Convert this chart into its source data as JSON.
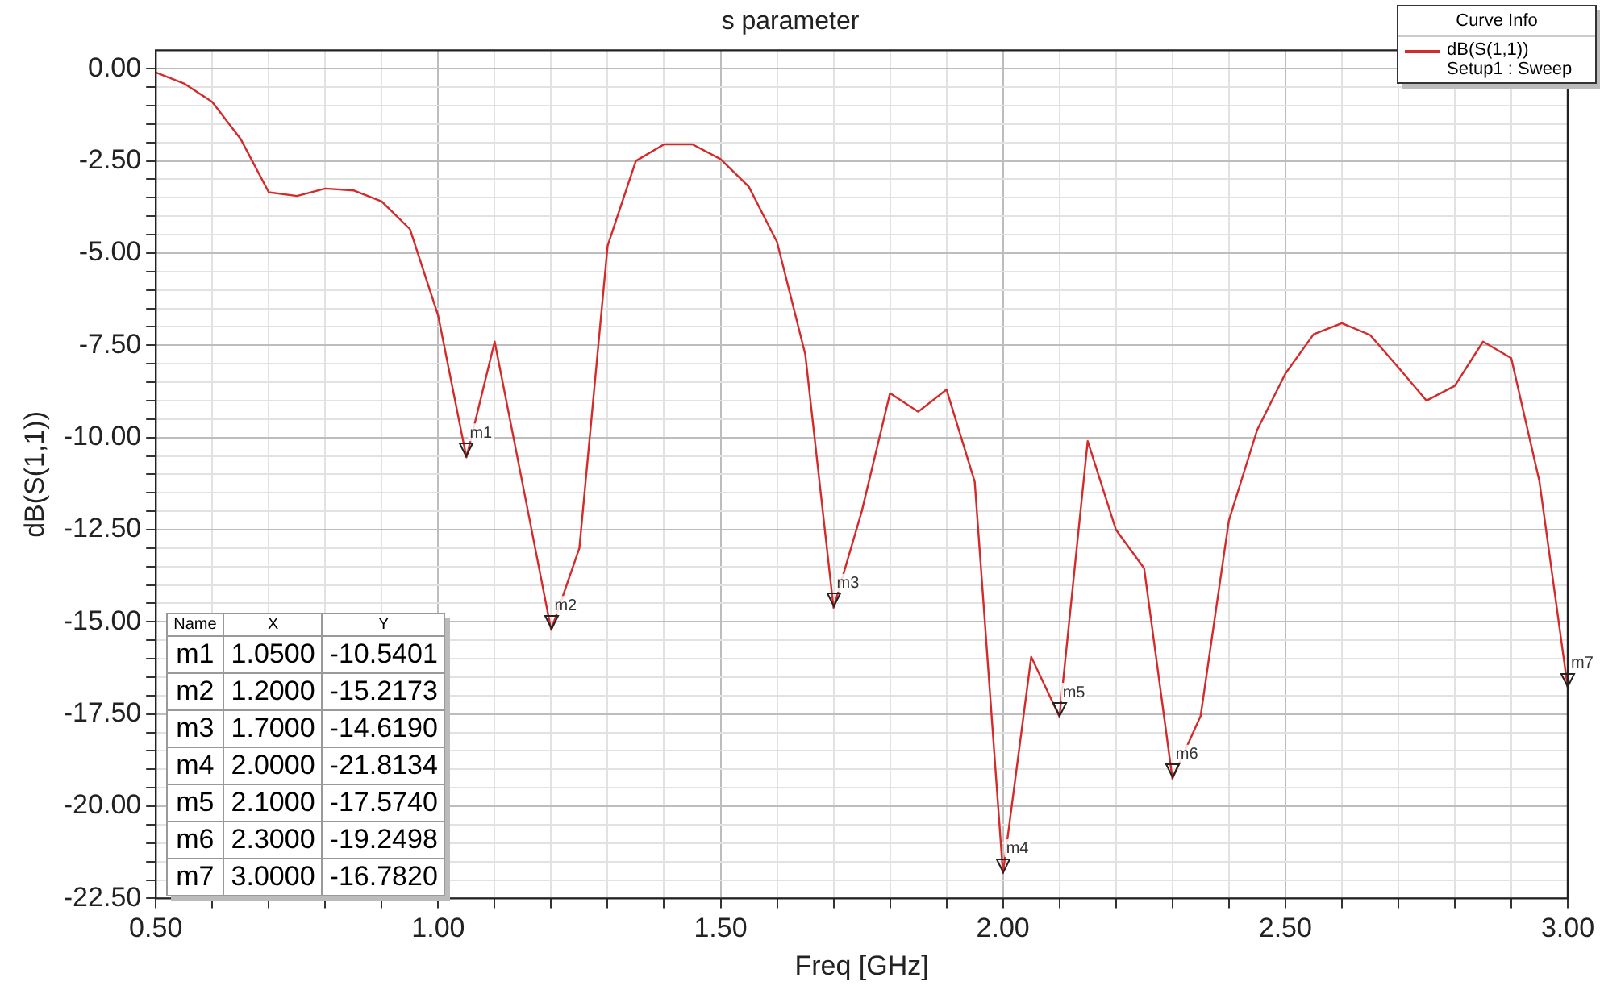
{
  "chart_data": {
    "type": "line",
    "title": "s parameter",
    "xlabel": "Freq [GHz]",
    "ylabel": "dB(S(1,1))",
    "legend_title": "Curve Info",
    "legend": "top right",
    "grid": true,
    "marker": "none",
    "line_style": "solid",
    "x": [
      0.5,
      0.55,
      0.6,
      0.65,
      0.7,
      0.75,
      0.8,
      0.85,
      0.9,
      0.95,
      1.0,
      1.05,
      1.1,
      1.15,
      1.2,
      1.25,
      1.3,
      1.35,
      1.4,
      1.45,
      1.5,
      1.55,
      1.6,
      1.65,
      1.7,
      1.75,
      1.8,
      1.85,
      1.9,
      1.95,
      2.0,
      2.05,
      2.1,
      2.15,
      2.2,
      2.25,
      2.3,
      2.35,
      2.4,
      2.45,
      2.5,
      2.55,
      2.6,
      2.65,
      2.7,
      2.75,
      2.8,
      2.85,
      2.9,
      2.95,
      3.0
    ],
    "series": [
      {
        "name": "dB(S(1,1)) Setup1 : Sweep",
        "color": "#d42a2a",
        "values": [
          -0.1,
          -0.4,
          -0.9,
          -1.9,
          -3.35,
          -3.45,
          -3.25,
          -3.3,
          -3.6,
          -4.35,
          -6.7,
          -10.5401,
          -7.4,
          -11.3,
          -15.2173,
          -13.0,
          -4.8,
          -2.5,
          -2.05,
          -2.05,
          -2.45,
          -3.2,
          -4.7,
          -7.75,
          -14.619,
          -12.0,
          -8.8,
          -9.3,
          -8.7,
          -11.2,
          -21.8134,
          -15.95,
          -17.574,
          -10.1,
          -12.5,
          -13.55,
          -19.2498,
          -17.55,
          -12.25,
          -9.8,
          -8.27,
          -7.2,
          -6.9,
          -7.22,
          -8.1,
          -9.0,
          -8.6,
          -7.4,
          -7.85,
          -11.2,
          -16.782
        ]
      }
    ],
    "xlim": [
      0.5,
      3.0
    ],
    "xticks": [
      {
        "value": 0.5,
        "label": "0.50"
      },
      {
        "value": 0.6,
        "label": null
      },
      {
        "value": 0.7,
        "label": null
      },
      {
        "value": 0.8,
        "label": null
      },
      {
        "value": 0.9,
        "label": null
      },
      {
        "value": 1.0,
        "label": "1.00"
      },
      {
        "value": 1.1,
        "label": null
      },
      {
        "value": 1.2,
        "label": null
      },
      {
        "value": 1.3,
        "label": null
      },
      {
        "value": 1.4,
        "label": null
      },
      {
        "value": 1.5,
        "label": "1.50"
      },
      {
        "value": 1.6,
        "label": null
      },
      {
        "value": 1.7,
        "label": null
      },
      {
        "value": 1.8,
        "label": null
      },
      {
        "value": 1.9,
        "label": null
      },
      {
        "value": 2.0,
        "label": "2.00"
      },
      {
        "value": 2.1,
        "label": null
      },
      {
        "value": 2.2,
        "label": null
      },
      {
        "value": 2.3,
        "label": null
      },
      {
        "value": 2.4,
        "label": null
      },
      {
        "value": 2.5,
        "label": "2.50"
      },
      {
        "value": 2.6,
        "label": null
      },
      {
        "value": 2.7,
        "label": null
      },
      {
        "value": 2.8,
        "label": null
      },
      {
        "value": 2.9,
        "label": null
      },
      {
        "value": 3.0,
        "label": "3.00"
      }
    ],
    "ylim": [
      -22.5,
      0.5
    ],
    "yticks": [
      {
        "value": 0,
        "label": "0.00"
      },
      {
        "value": -0.5,
        "label": null
      },
      {
        "value": -1,
        "label": null
      },
      {
        "value": -1.5,
        "label": null
      },
      {
        "value": -2,
        "label": null
      },
      {
        "value": -2.5,
        "label": "-2.50"
      },
      {
        "value": -3,
        "label": null
      },
      {
        "value": -3.5,
        "label": null
      },
      {
        "value": -4,
        "label": null
      },
      {
        "value": -4.5,
        "label": null
      },
      {
        "value": -5,
        "label": "-5.00"
      },
      {
        "value": -5.5,
        "label": null
      },
      {
        "value": -6,
        "label": null
      },
      {
        "value": -6.5,
        "label": null
      },
      {
        "value": -7,
        "label": null
      },
      {
        "value": -7.5,
        "label": "-7.50"
      },
      {
        "value": -8,
        "label": null
      },
      {
        "value": -8.5,
        "label": null
      },
      {
        "value": -9,
        "label": null
      },
      {
        "value": -9.5,
        "label": null
      },
      {
        "value": -10,
        "label": "-10.00"
      },
      {
        "value": -10.5,
        "label": null
      },
      {
        "value": -11,
        "label": null
      },
      {
        "value": -11.5,
        "label": null
      },
      {
        "value": -12,
        "label": null
      },
      {
        "value": -12.5,
        "label": "-12.50"
      },
      {
        "value": -13,
        "label": null
      },
      {
        "value": -13.5,
        "label": null
      },
      {
        "value": -14,
        "label": null
      },
      {
        "value": -14.5,
        "label": null
      },
      {
        "value": -15,
        "label": "-15.00"
      },
      {
        "value": -15.5,
        "label": null
      },
      {
        "value": -16,
        "label": null
      },
      {
        "value": -16.5,
        "label": null
      },
      {
        "value": -17,
        "label": null
      },
      {
        "value": -17.5,
        "label": "-17.50"
      },
      {
        "value": -18,
        "label": null
      },
      {
        "value": -18.5,
        "label": null
      },
      {
        "value": -19,
        "label": null
      },
      {
        "value": -19.5,
        "label": null
      },
      {
        "value": -20,
        "label": "-20.00"
      },
      {
        "value": -20.5,
        "label": null
      },
      {
        "value": -21,
        "label": null
      },
      {
        "value": -21.5,
        "label": null
      },
      {
        "value": -22,
        "label": null
      },
      {
        "value": -22.5,
        "label": "-22.50"
      }
    ],
    "annotations": [
      "Name",
      "X",
      "Y",
      "1.0500",
      "-10.5401",
      "1.2000",
      "-15.2173",
      "1.7000",
      "-14.6190",
      "2.0000",
      "-21.8134",
      "2.1000",
      "-17.5740",
      "2.3000",
      "-19.2498",
      "3.0000",
      "-16.7820",
      {
        "text": "m1",
        "x": 1.05,
        "y": -10.5401
      },
      {
        "text": "m2",
        "x": 1.2,
        "y": -15.2173
      },
      {
        "text": "m3",
        "x": 1.7,
        "y": -14.619
      },
      {
        "text": "m4",
        "x": 2.0,
        "y": -21.8134
      },
      {
        "text": "m5",
        "x": 2.1,
        "y": -17.574
      },
      {
        "text": "m6",
        "x": 2.3,
        "y": -19.2498
      },
      {
        "text": "m7",
        "x": 3.0,
        "y": -16.782
      }
    ]
  }
}
